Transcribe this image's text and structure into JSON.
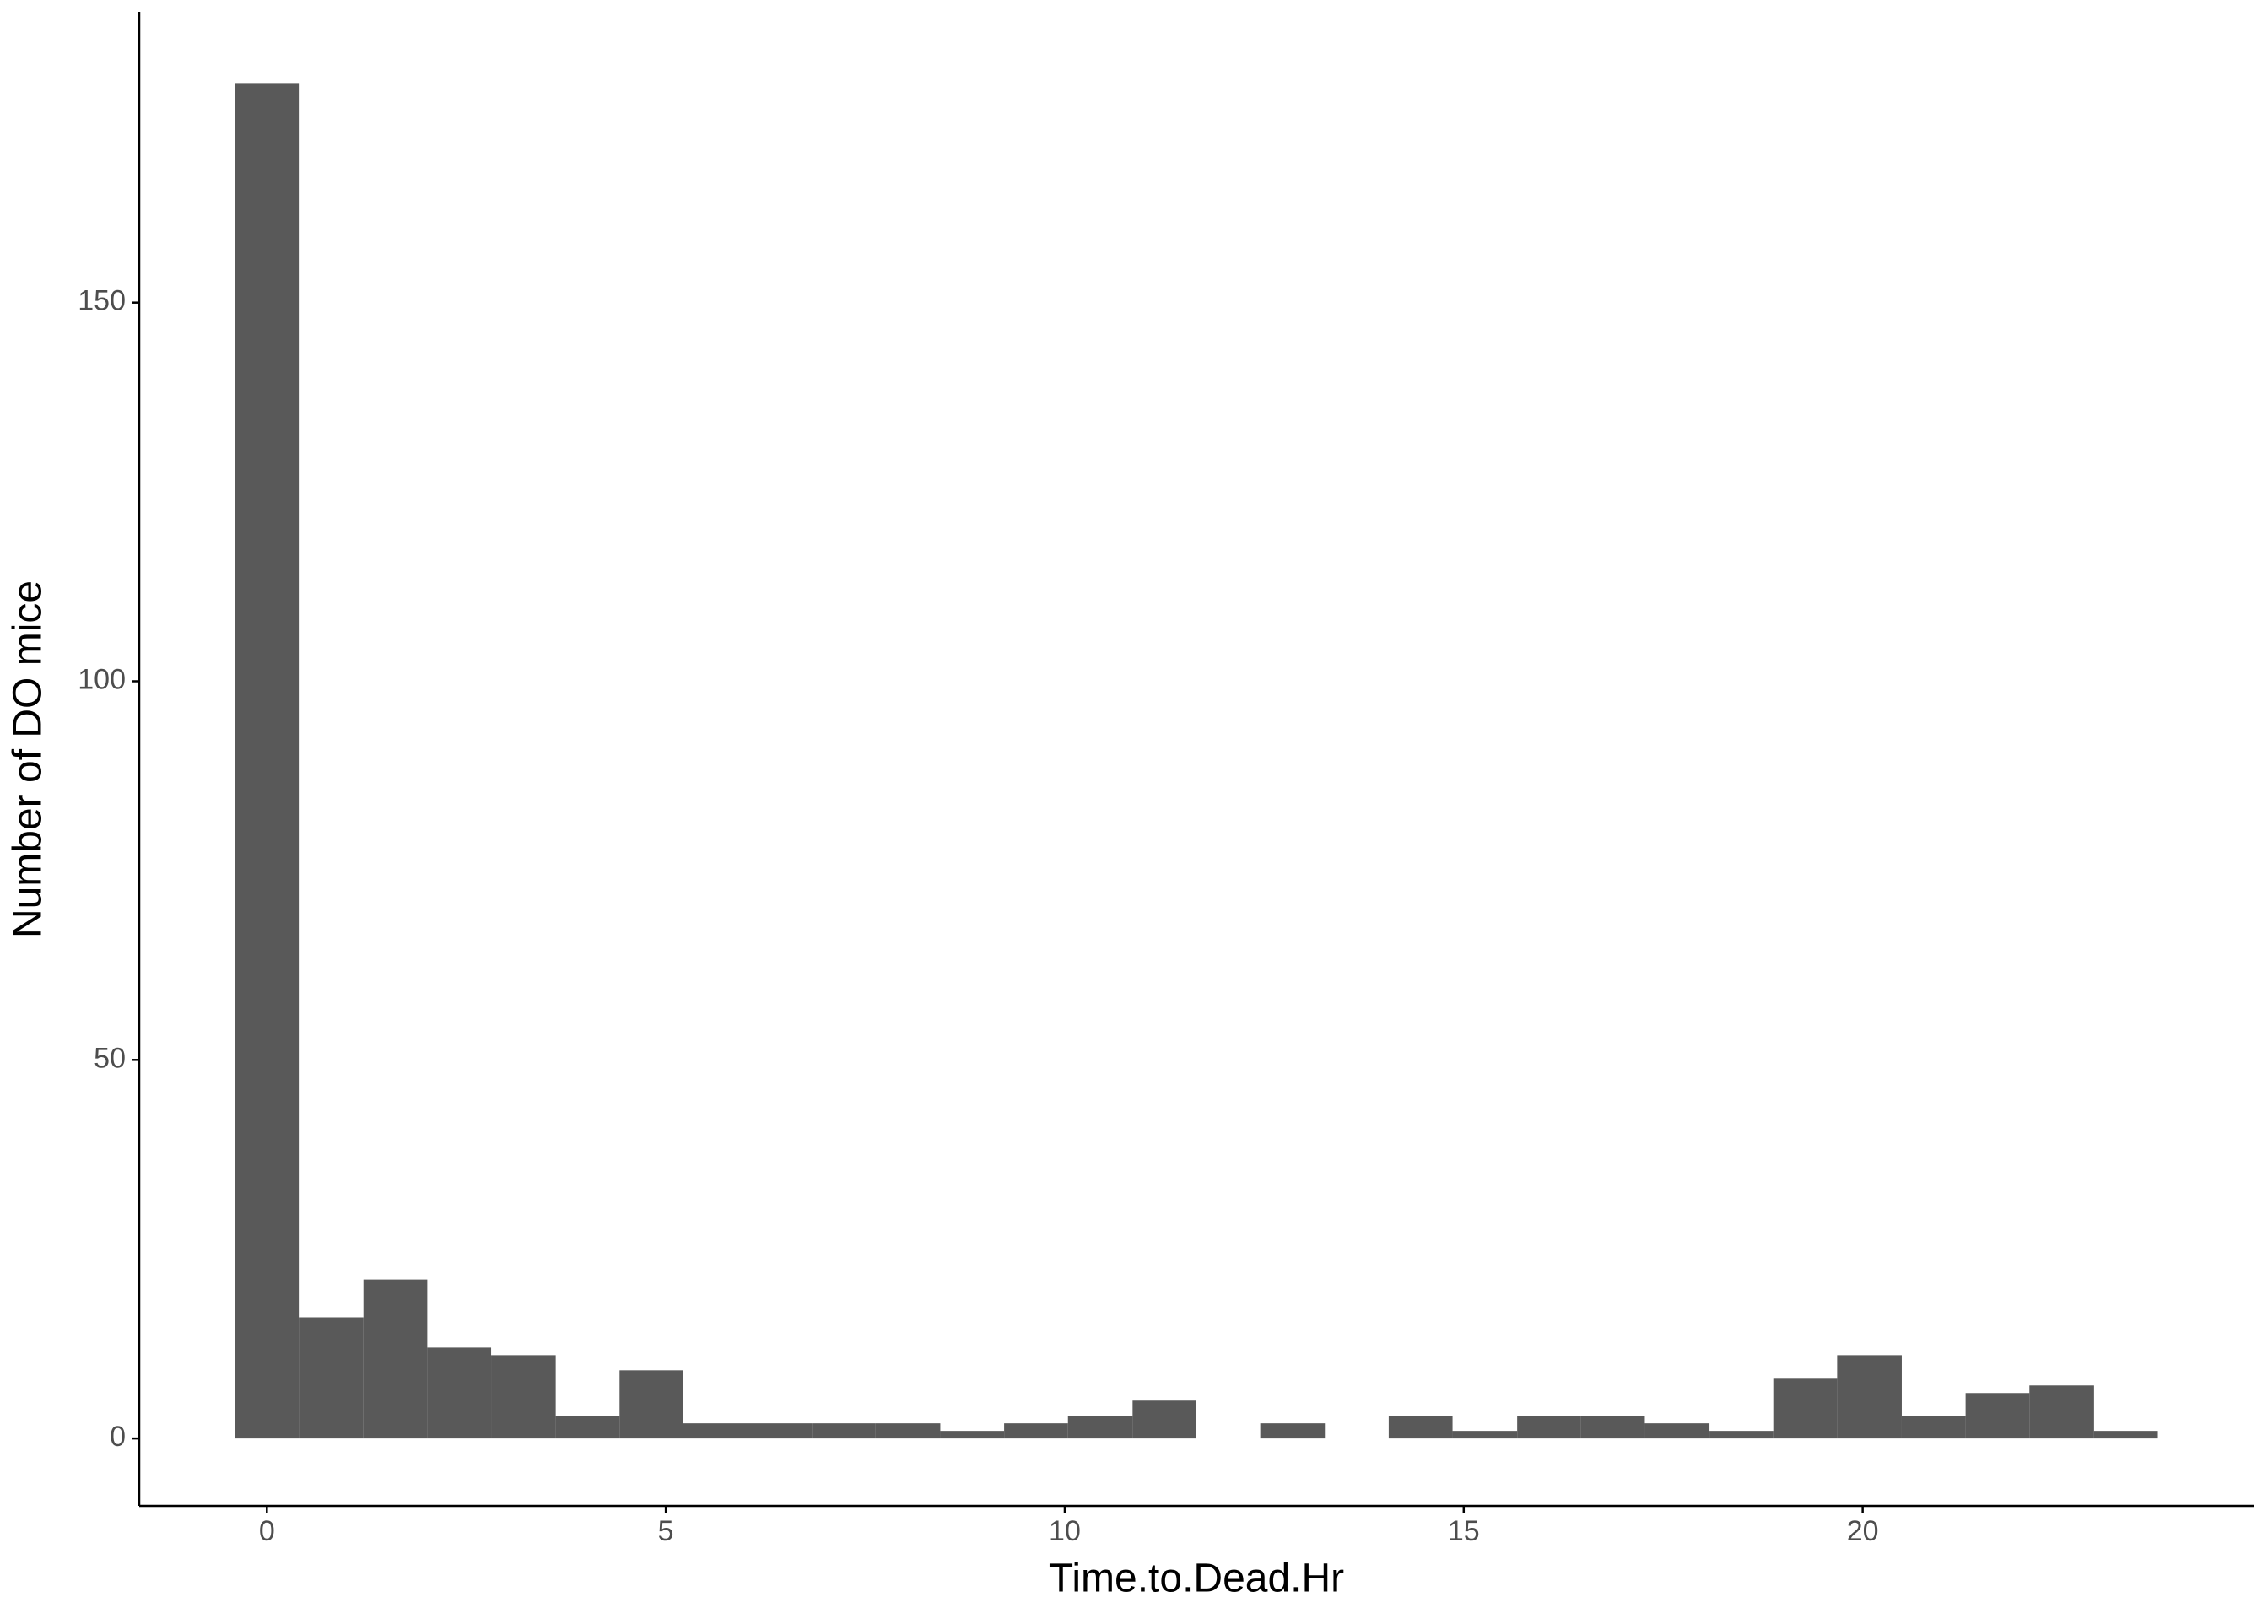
{
  "chart_data": {
    "type": "histogram",
    "x_label": "Time.to.Dead.Hr",
    "y_label": "Number of DO mice",
    "bins": [
      -0.4,
      0.4,
      1.21,
      2.01,
      2.81,
      3.62,
      4.42,
      5.22,
      6.03,
      6.83,
      7.63,
      8.44,
      9.24,
      10.04,
      10.85,
      11.65,
      12.45,
      13.26,
      14.06,
      14.86,
      15.67,
      16.47,
      17.27,
      18.08,
      18.88,
      19.68,
      20.49,
      21.29,
      22.09,
      22.9,
      23.7
    ],
    "values": [
      179,
      16,
      21,
      12,
      11,
      3,
      9,
      2,
      2,
      2,
      2,
      1,
      2,
      3,
      5,
      0,
      2,
      0,
      3,
      1,
      3,
      3,
      2,
      1,
      8,
      11,
      3,
      6,
      7,
      1
    ],
    "color": "#595959",
    "xlim": [
      -1.6,
      24.9
    ],
    "xticks": [
      0,
      5,
      10,
      15,
      20
    ],
    "ylim": [
      -8.9,
      188.4
    ],
    "yticks": [
      0,
      50,
      100,
      150
    ],
    "grid": false
  }
}
